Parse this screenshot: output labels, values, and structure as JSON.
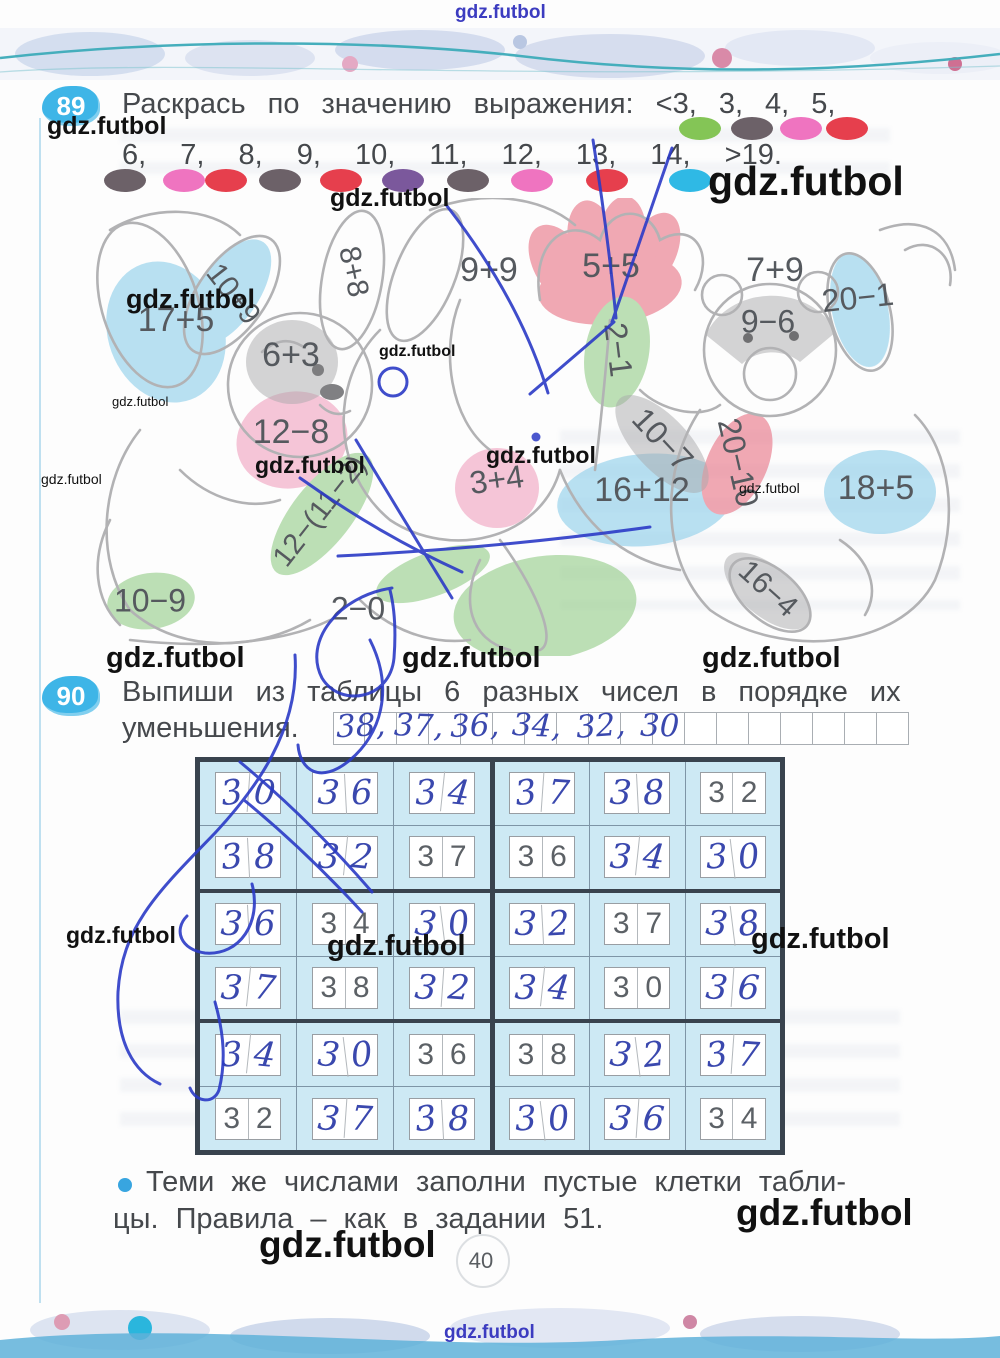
{
  "watermark": {
    "text": "gdz.futbol"
  },
  "page": {
    "number": "40"
  },
  "palette": {
    "badge_blue": "#3eb5e7",
    "ink_blue": "#2b3ac6",
    "pencil_blue": "#8ecfeb",
    "pencil_pink": "#f0a3c0",
    "pencil_red": "#e87487",
    "pencil_green": "#95cd89",
    "pencil_gray": "#a8a8aa",
    "outline_gray": "#b2b2b4",
    "table_bg": "#cde9f4",
    "table_border": "#39434e"
  },
  "task89": {
    "number": "89",
    "line1": "Раскрась по значению выражения: <3, 3, 4, 5,",
    "line2": "6, 7, 8, 9, 10, 11, 12, 13, 14, >19.",
    "legend_row1": [
      {
        "value": "<3",
        "color": "#84c556"
      },
      {
        "value": "3",
        "color": "#6c6168"
      },
      {
        "value": "4",
        "color": "#ef74c0"
      },
      {
        "value": "5",
        "color": "#e63f4d"
      }
    ],
    "legend_row2": [
      {
        "value": "6",
        "color": "#6c6168"
      },
      {
        "value": "7",
        "color": "#ef74c0"
      },
      {
        "value": "8",
        "color": "#e63f4d"
      },
      {
        "value": "9",
        "color": "#6c6168"
      },
      {
        "value": "10",
        "color": "#e63f4d"
      },
      {
        "value": "11",
        "color": "#7b589c"
      },
      {
        "value": "12",
        "color": "#6c6168"
      },
      {
        "value": "13",
        "color": "#ef74c0"
      },
      {
        "value": "14",
        "color": "#e63f4d"
      },
      {
        "value": ">19",
        "color": "#2fb9e5"
      }
    ]
  },
  "picture": {
    "expressions": [
      {
        "text": "10+9"
      },
      {
        "text": "17+5"
      },
      {
        "text": "8+8"
      },
      {
        "text": "6+3"
      },
      {
        "text": "9+9"
      },
      {
        "text": "5+5"
      },
      {
        "text": "7+9"
      },
      {
        "text": "20−1"
      },
      {
        "text": "9−6"
      },
      {
        "text": "2−1"
      },
      {
        "text": "12−8"
      },
      {
        "text": "3+4"
      },
      {
        "text": "10−7"
      },
      {
        "text": "20−10"
      },
      {
        "text": "16+12"
      },
      {
        "text": "18+5"
      },
      {
        "text": "12−(11−2)"
      },
      {
        "text": "16−4"
      },
      {
        "text": "10−9"
      },
      {
        "text": "2−0"
      }
    ]
  },
  "task90": {
    "number": "90",
    "line1": "Выпиши из таблицы 6 разных чисел в порядке их",
    "line2": "уменьшения.",
    "answer": [
      "38",
      "37",
      "36",
      "34",
      "32",
      "30"
    ]
  },
  "table": {
    "blocks": [
      {
        "rows": [
          [
            {
              "v": "30",
              "s": "hand"
            },
            {
              "v": "36",
              "s": "hand"
            },
            {
              "v": "34",
              "s": "hand"
            }
          ],
          [
            {
              "v": "38",
              "s": "hand"
            },
            {
              "v": "32",
              "s": "hand"
            },
            {
              "v": "37",
              "s": "print"
            }
          ],
          [
            {
              "v": "36",
              "s": "hand"
            },
            {
              "v": "34",
              "s": "print"
            },
            {
              "v": "30",
              "s": "hand"
            }
          ],
          [
            {
              "v": "37",
              "s": "hand"
            },
            {
              "v": "38",
              "s": "print"
            },
            {
              "v": "32",
              "s": "hand"
            }
          ],
          [
            {
              "v": "34",
              "s": "hand"
            },
            {
              "v": "30",
              "s": "hand"
            },
            {
              "v": "36",
              "s": "print"
            }
          ],
          [
            {
              "v": "32",
              "s": "print"
            },
            {
              "v": "37",
              "s": "hand"
            },
            {
              "v": "38",
              "s": "hand"
            }
          ]
        ]
      },
      {
        "rows": [
          [
            {
              "v": "37",
              "s": "hand"
            },
            {
              "v": "38",
              "s": "hand"
            },
            {
              "v": "32",
              "s": "print"
            }
          ],
          [
            {
              "v": "36",
              "s": "print"
            },
            {
              "v": "34",
              "s": "hand"
            },
            {
              "v": "30",
              "s": "hand"
            }
          ],
          [
            {
              "v": "32",
              "s": "hand"
            },
            {
              "v": "37",
              "s": "print"
            },
            {
              "v": "38",
              "s": "hand"
            }
          ],
          [
            {
              "v": "34",
              "s": "hand"
            },
            {
              "v": "30",
              "s": "print"
            },
            {
              "v": "36",
              "s": "hand"
            }
          ],
          [
            {
              "v": "38",
              "s": "print"
            },
            {
              "v": "32",
              "s": "hand"
            },
            {
              "v": "37",
              "s": "hand"
            }
          ],
          [
            {
              "v": "30",
              "s": "hand"
            },
            {
              "v": "36",
              "s": "hand"
            },
            {
              "v": "34",
              "s": "print"
            }
          ]
        ]
      }
    ]
  },
  "task90b": {
    "line1": "Теми же числами заполни пустые клетки табли-",
    "line2": "цы. Правила – как в задании 51."
  }
}
